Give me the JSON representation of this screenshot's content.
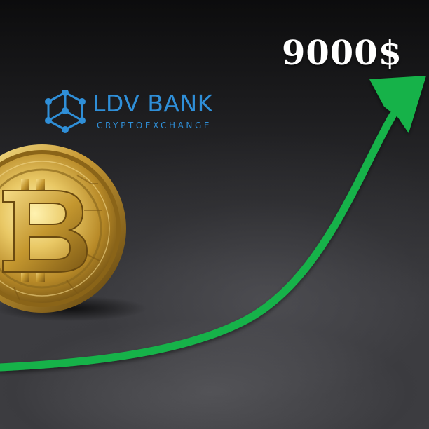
{
  "price_label": "9000$",
  "brand": {
    "name": "LDV BANK",
    "tagline": "CRYPTOEXCHANGE",
    "color": "#2f8fd8"
  },
  "colors": {
    "arrow": "#19b24a",
    "coin_gold": "#d8b04a",
    "background": "#2a2a2d"
  },
  "icons": {
    "brand_logo": "hexagon-network-icon",
    "coin_symbol": "bitcoin-icon"
  }
}
